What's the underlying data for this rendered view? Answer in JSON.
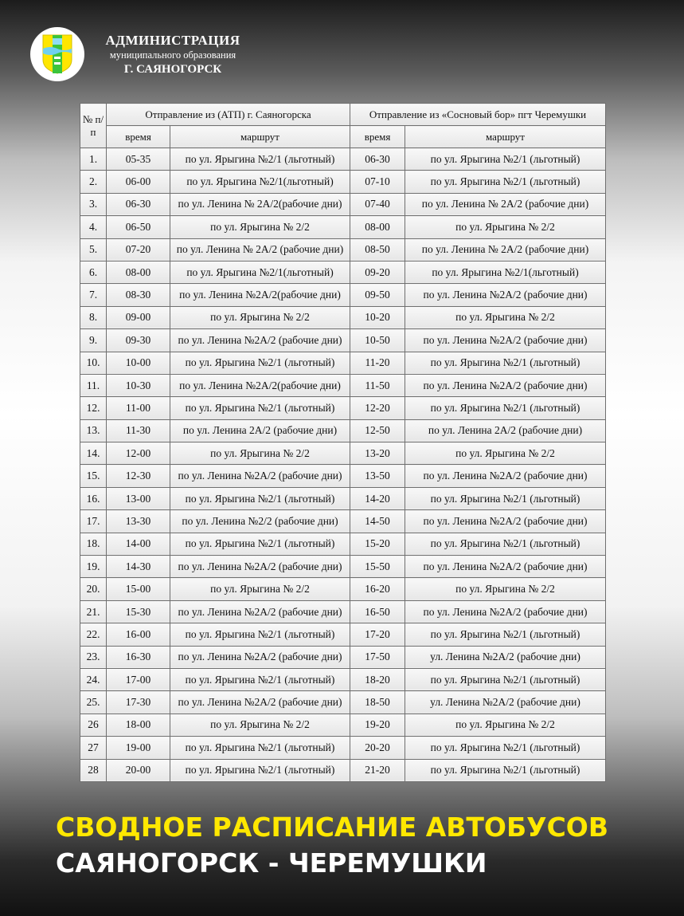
{
  "header": {
    "line1": "АДМИНИСТРАЦИЯ",
    "line2": "муниципального образования",
    "line3": "Г. САЯНОГОРСК",
    "logo_icon": "coat-of-arms-icon",
    "logo_colors": {
      "yellow": "#ffe600",
      "green": "#3cc43c",
      "blue": "#6fd0f0"
    }
  },
  "table": {
    "col_num": "№ п/п",
    "group1": "Отправление из (АТП)  г. Саяногорска",
    "group2": "Отправление  из  «Сосновый бор» пгт Черемушки",
    "time_label": "время",
    "route_label": "маршрут",
    "rows": [
      [
        "1.",
        "05-35",
        "по ул. Ярыгина №2/1 (льготный)",
        "06-30",
        "по ул. Ярыгина №2/1 (льготный)"
      ],
      [
        "2.",
        "06-00",
        "по ул. Ярыгина №2/1(льготный)",
        "07-10",
        "по ул. Ярыгина №2/1 (льготный)"
      ],
      [
        "3.",
        "06-30",
        "по ул. Ленина № 2А/2(рабочие дни)",
        "07-40",
        "по ул. Ленина № 2А/2 (рабочие дни)"
      ],
      [
        "4.",
        "06-50",
        "по ул. Ярыгина № 2/2",
        "08-00",
        "по ул. Ярыгина № 2/2"
      ],
      [
        "5.",
        "07-20",
        "по ул. Ленина № 2А/2 (рабочие дни)",
        "08-50",
        "по ул. Ленина № 2А/2 (рабочие дни)"
      ],
      [
        "6.",
        "08-00",
        "по ул. Ярыгина №2/1(льготный)",
        "09-20",
        "по ул. Ярыгина №2/1(льготный)"
      ],
      [
        "7.",
        "08-30",
        "по ул. Ленина №2А/2(рабочие дни)",
        "09-50",
        "по ул. Ленина №2А/2 (рабочие дни)"
      ],
      [
        "8.",
        "09-00",
        "по ул. Ярыгина № 2/2",
        "10-20",
        "по ул. Ярыгина № 2/2"
      ],
      [
        "9.",
        "09-30",
        "по ул. Ленина №2А/2 (рабочие дни)",
        "10-50",
        "по ул. Ленина №2А/2 (рабочие дни)"
      ],
      [
        "10.",
        "10-00",
        "по ул.  Ярыгина №2/1 (льготный)",
        "11-20",
        "по ул.  Ярыгина №2/1 (льготный)"
      ],
      [
        "11.",
        "10-30",
        "по ул. Ленина №2А/2(рабочие дни)",
        "11-50",
        "по ул. Ленина №2А/2 (рабочие дни)"
      ],
      [
        "12.",
        "11-00",
        "по ул. Ярыгина №2/1 (льготный)",
        "12-20",
        "по ул. Ярыгина №2/1 (льготный)"
      ],
      [
        "13.",
        "11-30",
        "по ул. Ленина 2А/2 (рабочие дни)",
        "12-50",
        "по ул. Ленина 2А/2 (рабочие дни)"
      ],
      [
        "14.",
        "12-00",
        "по ул. Ярыгина № 2/2",
        "13-20",
        "по ул. Ярыгина № 2/2"
      ],
      [
        "15.",
        "12-30",
        "по ул. Ленина №2А/2 (рабочие дни)",
        "13-50",
        "по ул. Ленина №2А/2 (рабочие дни)"
      ],
      [
        "16.",
        "13-00",
        "по ул. Ярыгина №2/1 (льготный)",
        "14-20",
        "по ул. Ярыгина №2/1 (льготный)"
      ],
      [
        "17.",
        "13-30",
        "по ул. Ленина №2/2 (рабочие дни)",
        "14-50",
        "по ул. Ленина №2А/2 (рабочие дни)"
      ],
      [
        "18.",
        "14-00",
        "по ул. Ярыгина №2/1 (льготный)",
        "15-20",
        "по ул. Ярыгина №2/1 (льготный)"
      ],
      [
        "19.",
        "14-30",
        "по ул. Ленина №2А/2 (рабочие дни)",
        "15-50",
        "по ул. Ленина №2А/2 (рабочие дни)"
      ],
      [
        "20.",
        "15-00",
        "по ул. Ярыгина № 2/2",
        "16-20",
        "по ул. Ярыгина № 2/2"
      ],
      [
        "21.",
        "15-30",
        "по ул. Ленина №2А/2 (рабочие дни)",
        "16-50",
        "по ул. Ленина №2А/2 (рабочие дни)"
      ],
      [
        "22.",
        "16-00",
        "по ул. Ярыгина №2/1 (льготный)",
        "17-20",
        "по ул. Ярыгина №2/1 (льготный)"
      ],
      [
        "23.",
        "16-30",
        "по ул. Ленина №2А/2 (рабочие дни)",
        "17-50",
        "ул. Ленина №2А/2 (рабочие дни)"
      ],
      [
        "24.",
        "17-00",
        "по ул. Ярыгина №2/1 (льготный)",
        "18-20",
        "по ул. Ярыгина №2/1 (льготный)"
      ],
      [
        "25.",
        "17-30",
        "по ул. Ленина №2А/2 (рабочие дни)",
        "18-50",
        "ул. Ленина №2А/2 (рабочие дни)"
      ],
      [
        "26",
        "18-00",
        "по ул. Ярыгина № 2/2",
        "19-20",
        "по ул. Ярыгина № 2/2"
      ],
      [
        "27",
        "19-00",
        "по ул. Ярыгина №2/1 (льготный)",
        "20-20",
        "по ул. Ярыгина №2/1 (льготный)"
      ],
      [
        "28",
        "20-00",
        "по ул. Ярыгина №2/1 (льготный)",
        "21-20",
        "по ул. Ярыгина №2/1 (льготный)"
      ]
    ]
  },
  "footer": {
    "title_line1": "СВОДНОЕ РАСПИСАНИЕ АВТОБУСОВ",
    "title_line2": "САЯНОГОРСК - ЧЕРЕМУШКИ",
    "accent_color": "#ffe800"
  }
}
